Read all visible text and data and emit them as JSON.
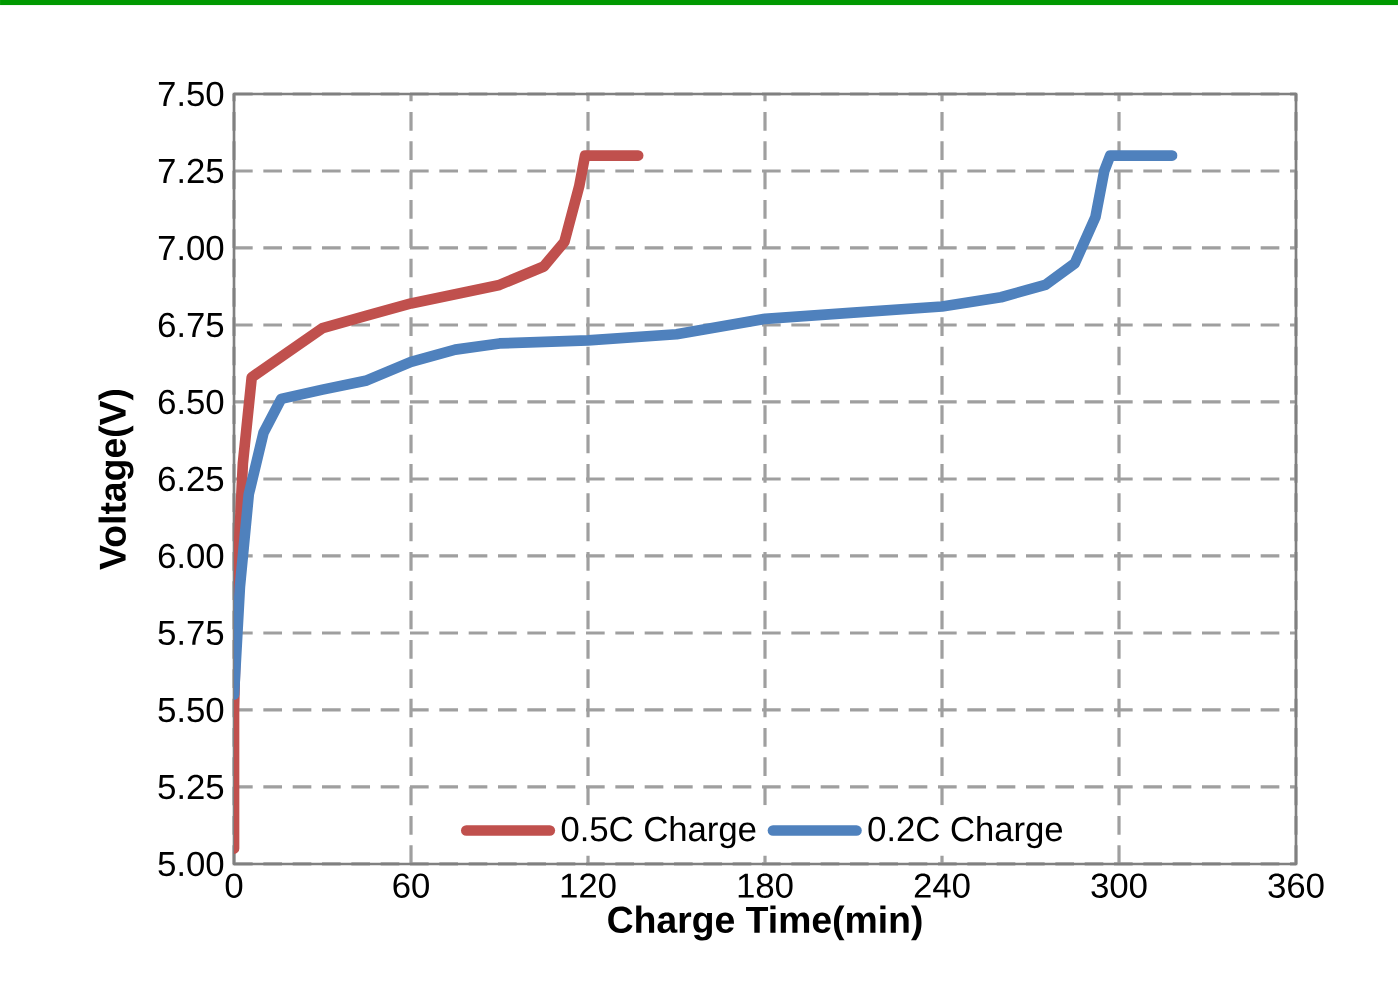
{
  "chart_data": {
    "type": "line",
    "xlabel": "Charge Time(min)",
    "ylabel": "Voltage(V)",
    "xlim": [
      0,
      360
    ],
    "xticks": [
      0,
      60,
      120,
      180,
      240,
      300,
      360
    ],
    "ylim": [
      5.0,
      7.5
    ],
    "yticks": [
      {
        "value": 5.0,
        "label": "5.00"
      },
      {
        "value": 5.25,
        "label": "5.25"
      },
      {
        "value": 5.5,
        "label": "5.50"
      },
      {
        "value": 5.75,
        "label": "5.75"
      },
      {
        "value": 6.0,
        "label": "6.00"
      },
      {
        "value": 6.25,
        "label": "6.25"
      },
      {
        "value": 6.5,
        "label": "6.50"
      },
      {
        "value": 6.75,
        "label": "6.75"
      },
      {
        "value": 7.0,
        "label": "7.00"
      },
      {
        "value": 7.25,
        "label": "7.25"
      },
      {
        "value": 7.5,
        "label": "7.50"
      }
    ],
    "grid": true,
    "legend": "bottom",
    "line_style": "solid",
    "marker": "none",
    "series": [
      {
        "name": "0.5C Charge",
        "color": "#c0504d",
        "x": [
          0,
          0,
          1,
          3,
          6,
          15,
          30,
          45,
          60,
          90,
          105,
          112,
          117,
          119,
          137
        ],
        "values": [
          5.05,
          5.5,
          5.9,
          6.3,
          6.58,
          6.64,
          6.74,
          6.78,
          6.82,
          6.88,
          6.94,
          7.02,
          7.2,
          7.3,
          7.3
        ]
      },
      {
        "name": "0.2C Charge",
        "color": "#4f81bd",
        "x": [
          0,
          2,
          5,
          10,
          16,
          30,
          45,
          60,
          75,
          90,
          120,
          150,
          180,
          210,
          240,
          260,
          275,
          285,
          292,
          295,
          297,
          318
        ],
        "values": [
          5.55,
          5.9,
          6.2,
          6.4,
          6.51,
          6.54,
          6.57,
          6.63,
          6.67,
          6.69,
          6.7,
          6.72,
          6.77,
          6.79,
          6.81,
          6.84,
          6.88,
          6.95,
          7.1,
          7.25,
          7.3,
          7.3
        ]
      }
    ]
  }
}
